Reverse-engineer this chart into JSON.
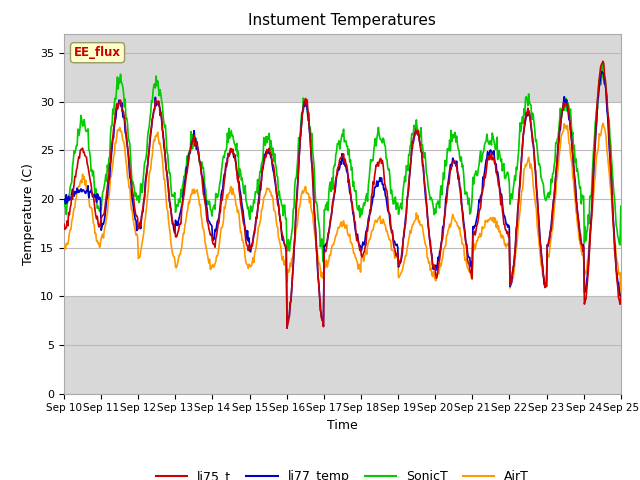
{
  "title": "Instument Temperatures",
  "xlabel": "Time",
  "ylabel": "Temperature (C)",
  "ylim": [
    0,
    37
  ],
  "yticks": [
    0,
    5,
    10,
    15,
    20,
    25,
    30,
    35
  ],
  "x_labels": [
    "Sep 10",
    "Sep 11",
    "Sep 12",
    "Sep 13",
    "Sep 14",
    "Sep 15",
    "Sep 16",
    "Sep 17",
    "Sep 18",
    "Sep 19",
    "Sep 20",
    "Sep 21",
    "Sep 22",
    "Sep 23",
    "Sep 24",
    "Sep 25"
  ],
  "series_colors": {
    "li75_t": "#cc0000",
    "li77_temp": "#0000cc",
    "SonicT": "#00cc00",
    "AirT": "#ff9900"
  },
  "annotation_text": "EE_flux",
  "annotation_color": "#cc0000",
  "annotation_bg": "#ffffcc",
  "annotation_border": "#999966",
  "bg_color": "#ffffff",
  "plot_bg_color": "#d8d8d8",
  "band_white_low": 10,
  "band_white_high": 30,
  "grid_color": "#bbbbbb",
  "line_width": 1.2,
  "peaks_li75": [
    25,
    30,
    30,
    26,
    25,
    25,
    30,
    24.5,
    24,
    27,
    24,
    24.5,
    29,
    30,
    34,
    11
  ],
  "troughs_li75": [
    17,
    18,
    17,
    16,
    15,
    15,
    7,
    15,
    14,
    13,
    12,
    16,
    11,
    15,
    9,
    10
  ],
  "peaks_li77": [
    21,
    30,
    30,
    26,
    25,
    25,
    30,
    24,
    22,
    27,
    24,
    25,
    29,
    30,
    33,
    11
  ],
  "troughs_li77": [
    20,
    17,
    17,
    17,
    16,
    15,
    7,
    15,
    15,
    13,
    13,
    17,
    11,
    15,
    10,
    10
  ],
  "peaks_sonic": [
    28,
    32,
    32,
    26,
    26.5,
    26,
    30,
    26.5,
    26.5,
    27.5,
    26.5,
    26.5,
    30,
    30,
    33,
    21
  ],
  "troughs_sonic": [
    19,
    20,
    20,
    19,
    19,
    18,
    14.5,
    19,
    19,
    19,
    19,
    22,
    20,
    20,
    15,
    20
  ],
  "peaks_air": [
    22,
    27,
    26.5,
    21,
    21,
    21,
    21,
    17.5,
    18,
    18,
    18,
    18,
    24,
    27.5,
    27.5,
    11
  ],
  "troughs_air": [
    15,
    16,
    14,
    13,
    13,
    13,
    12,
    13,
    14,
    12,
    12,
    15,
    11,
    14,
    12,
    10
  ]
}
